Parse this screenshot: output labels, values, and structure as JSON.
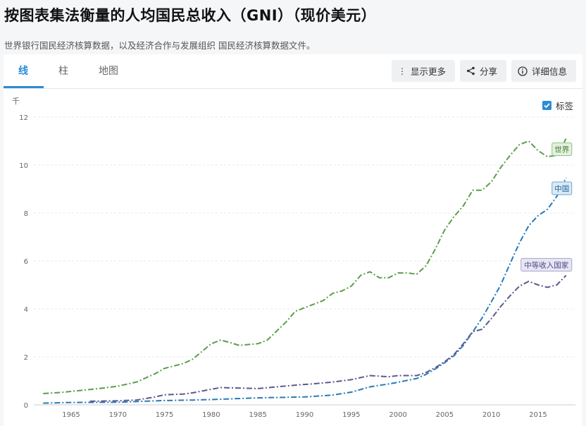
{
  "page": {
    "title": "按图表集法衡量的人均国民总收入（GNI）（现价美元）",
    "subtitle": "世界银行国民经济核算数据，以及经济合作与发展组织 国民经济核算数据文件。"
  },
  "tabs": [
    {
      "label": "线",
      "active": true
    },
    {
      "label": "柱",
      "active": false
    },
    {
      "label": "地图",
      "active": false
    }
  ],
  "toolbar": {
    "more_label": "显示更多",
    "share_label": "分享",
    "details_label": "详细信息"
  },
  "labels_toggle": {
    "label": "标签",
    "checked": true
  },
  "colors": {
    "accent": "#2b8cd6",
    "world": "#5a9e4b",
    "china": "#2a7ab5",
    "middle": "#5a5a91"
  },
  "chart_data": {
    "type": "line",
    "ylabel": "千",
    "ylim": [
      0,
      12
    ],
    "yticks": [
      0,
      2,
      4,
      6,
      8,
      10,
      12
    ],
    "xlim": [
      1961,
      2019
    ],
    "xticks": [
      1965,
      1970,
      1975,
      1980,
      1985,
      1990,
      1995,
      2000,
      2005,
      2010,
      2015
    ],
    "grid": true,
    "series": [
      {
        "name": "世界",
        "color_key": "world",
        "points": [
          [
            1962,
            0.47
          ],
          [
            1964,
            0.52
          ],
          [
            1966,
            0.6
          ],
          [
            1968,
            0.68
          ],
          [
            1970,
            0.78
          ],
          [
            1972,
            0.95
          ],
          [
            1974,
            1.3
          ],
          [
            1975,
            1.52
          ],
          [
            1977,
            1.72
          ],
          [
            1978,
            1.9
          ],
          [
            1980,
            2.55
          ],
          [
            1981,
            2.7
          ],
          [
            1982,
            2.6
          ],
          [
            1983,
            2.48
          ],
          [
            1985,
            2.55
          ],
          [
            1986,
            2.7
          ],
          [
            1988,
            3.45
          ],
          [
            1989,
            3.9
          ],
          [
            1990,
            4.05
          ],
          [
            1991,
            4.2
          ],
          [
            1992,
            4.35
          ],
          [
            1993,
            4.65
          ],
          [
            1994,
            4.75
          ],
          [
            1995,
            4.95
          ],
          [
            1996,
            5.4
          ],
          [
            1997,
            5.55
          ],
          [
            1998,
            5.3
          ],
          [
            1999,
            5.3
          ],
          [
            2000,
            5.5
          ],
          [
            2001,
            5.5
          ],
          [
            2002,
            5.45
          ],
          [
            2003,
            5.8
          ],
          [
            2004,
            6.5
          ],
          [
            2005,
            7.3
          ],
          [
            2006,
            7.85
          ],
          [
            2007,
            8.3
          ],
          [
            2008,
            8.95
          ],
          [
            2009,
            8.95
          ],
          [
            2010,
            9.3
          ],
          [
            2011,
            9.9
          ],
          [
            2012,
            10.4
          ],
          [
            2013,
            10.85
          ],
          [
            2014,
            11.0
          ],
          [
            2015,
            10.6
          ],
          [
            2016,
            10.35
          ],
          [
            2017,
            10.4
          ],
          [
            2018,
            11.1
          ]
        ]
      },
      {
        "name": "中国",
        "color_key": "china",
        "points": [
          [
            1962,
            0.07
          ],
          [
            1965,
            0.1
          ],
          [
            1970,
            0.11
          ],
          [
            1975,
            0.18
          ],
          [
            1978,
            0.2
          ],
          [
            1980,
            0.22
          ],
          [
            1985,
            0.29
          ],
          [
            1990,
            0.33
          ],
          [
            1993,
            0.41
          ],
          [
            1995,
            0.53
          ],
          [
            1997,
            0.75
          ],
          [
            1999,
            0.87
          ],
          [
            2000,
            0.94
          ],
          [
            2002,
            1.1
          ],
          [
            2003,
            1.27
          ],
          [
            2004,
            1.5
          ],
          [
            2005,
            1.76
          ],
          [
            2006,
            2.05
          ],
          [
            2007,
            2.48
          ],
          [
            2008,
            3.04
          ],
          [
            2009,
            3.62
          ],
          [
            2010,
            4.3
          ],
          [
            2011,
            5.0
          ],
          [
            2012,
            5.89
          ],
          [
            2013,
            6.75
          ],
          [
            2014,
            7.47
          ],
          [
            2015,
            7.89
          ],
          [
            2016,
            8.15
          ],
          [
            2017,
            8.69
          ],
          [
            2018,
            9.47
          ]
        ]
      },
      {
        "name": "中等收入国家",
        "color_key": "middle",
        "points": [
          [
            1967,
            0.15
          ],
          [
            1970,
            0.17
          ],
          [
            1972,
            0.2
          ],
          [
            1974,
            0.33
          ],
          [
            1975,
            0.42
          ],
          [
            1977,
            0.45
          ],
          [
            1978,
            0.5
          ],
          [
            1980,
            0.65
          ],
          [
            1981,
            0.72
          ],
          [
            1983,
            0.7
          ],
          [
            1985,
            0.68
          ],
          [
            1987,
            0.75
          ],
          [
            1989,
            0.82
          ],
          [
            1991,
            0.88
          ],
          [
            1993,
            0.95
          ],
          [
            1995,
            1.05
          ],
          [
            1997,
            1.22
          ],
          [
            1999,
            1.17
          ],
          [
            2000,
            1.22
          ],
          [
            2002,
            1.22
          ],
          [
            2003,
            1.35
          ],
          [
            2004,
            1.55
          ],
          [
            2005,
            1.8
          ],
          [
            2006,
            2.1
          ],
          [
            2007,
            2.55
          ],
          [
            2008,
            3.05
          ],
          [
            2009,
            3.15
          ],
          [
            2010,
            3.6
          ],
          [
            2011,
            4.1
          ],
          [
            2012,
            4.55
          ],
          [
            2013,
            4.95
          ],
          [
            2014,
            5.15
          ],
          [
            2015,
            5.0
          ],
          [
            2016,
            4.9
          ],
          [
            2017,
            5.0
          ],
          [
            2018,
            5.4
          ]
        ]
      }
    ]
  }
}
